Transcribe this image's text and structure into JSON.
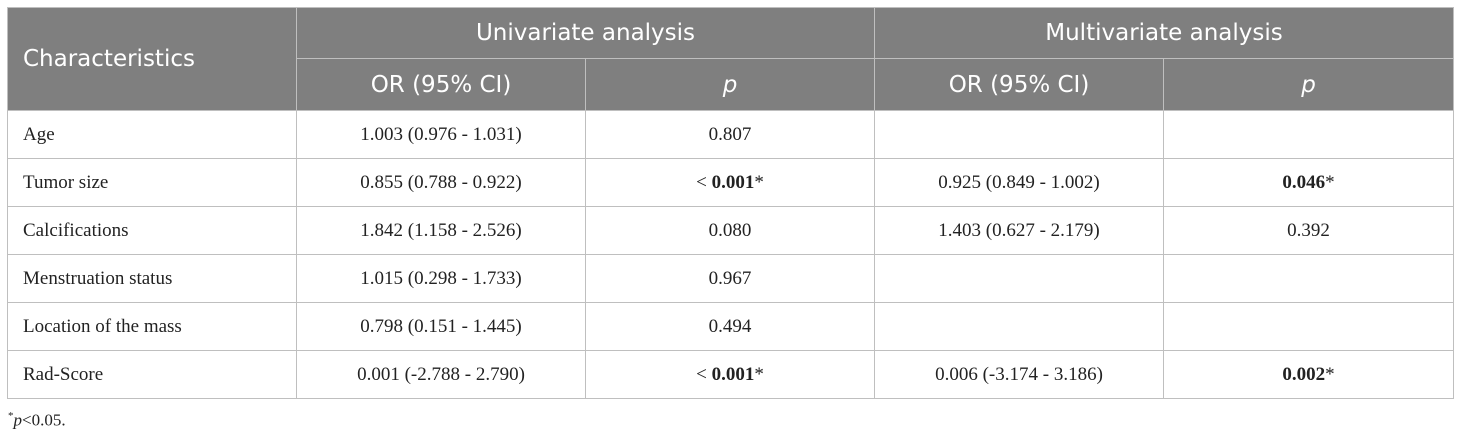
{
  "table": {
    "header": {
      "characteristics": "Characteristics",
      "univariate": "Univariate analysis",
      "multivariate": "Multivariate analysis",
      "or_ci": "OR (95% CI)",
      "p": "p"
    },
    "rows": [
      {
        "name": "Age",
        "uni_or": "1.003 (0.976 - 1.031)",
        "uni_p_prefix": "",
        "uni_p": "0.807",
        "uni_p_sig": "",
        "multi_or": "",
        "multi_p": "",
        "multi_p_sig": ""
      },
      {
        "name": "Tumor size",
        "uni_or": "0.855 (0.788 - 0.922)",
        "uni_p_prefix": "< ",
        "uni_p": "0.001",
        "uni_p_sig": "*",
        "multi_or": "0.925 (0.849 - 1.002)",
        "multi_p": "0.046",
        "multi_p_sig": "*"
      },
      {
        "name": "Calcifications",
        "uni_or": "1.842 (1.158 - 2.526)",
        "uni_p_prefix": "",
        "uni_p": "0.080",
        "uni_p_sig": "",
        "multi_or": "1.403 (0.627 - 2.179)",
        "multi_p": "0.392",
        "multi_p_sig": ""
      },
      {
        "name": "Menstruation status",
        "uni_or": "1.015 (0.298 - 1.733)",
        "uni_p_prefix": "",
        "uni_p": "0.967",
        "uni_p_sig": "",
        "multi_or": "",
        "multi_p": "",
        "multi_p_sig": ""
      },
      {
        "name": "Location of the mass",
        "uni_or": "0.798 (0.151 - 1.445)",
        "uni_p_prefix": "",
        "uni_p": "0.494",
        "uni_p_sig": "",
        "multi_or": "",
        "multi_p": "",
        "multi_p_sig": ""
      },
      {
        "name": "Rad-Score",
        "uni_or": "0.001 (-2.788 - 2.790)",
        "uni_p_prefix": "< ",
        "uni_p": "0.001",
        "uni_p_sig": "*",
        "multi_or": "0.006 (-3.174 - 3.186)",
        "multi_p": "0.002",
        "multi_p_sig": "*"
      }
    ]
  },
  "footnote": {
    "marker": "*",
    "p": "p",
    "text": "<0.05."
  }
}
